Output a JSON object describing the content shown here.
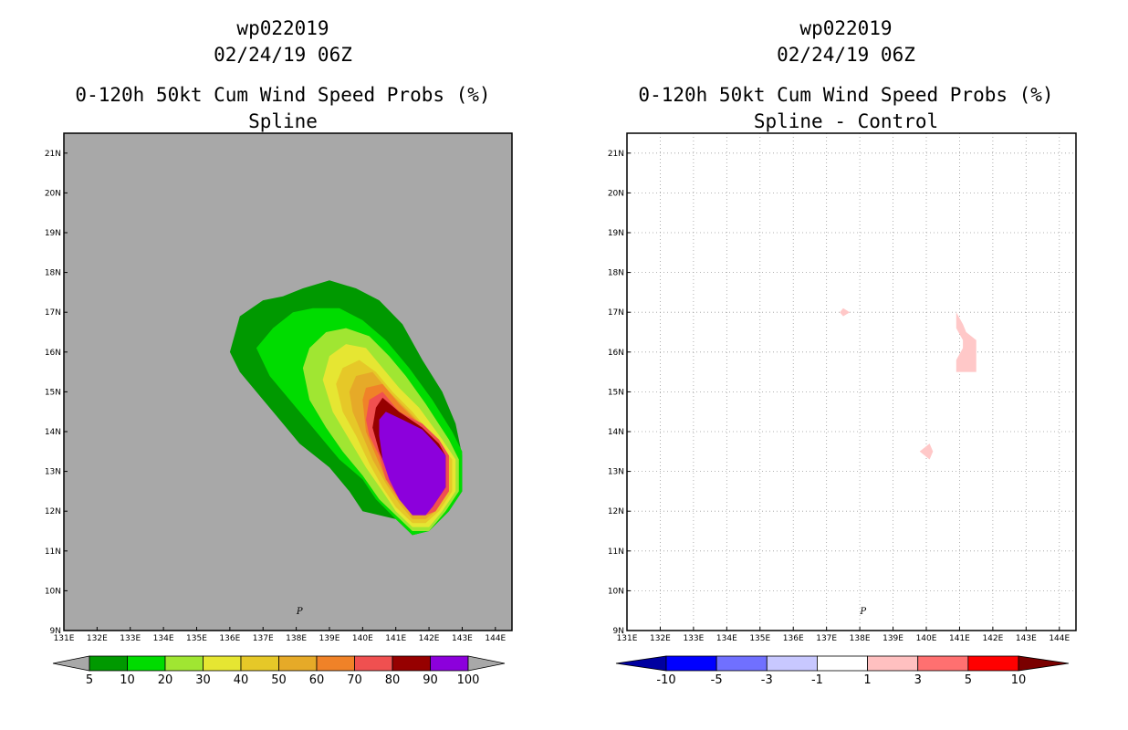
{
  "chart_data": [
    {
      "type": "heatmap",
      "storm_id": "wp022019",
      "datetime": "02/24/19 06Z",
      "title": "0-120h 50kt Cum Wind Speed Probs (%)",
      "subtitle": "Spline",
      "lon_ticks": [
        "131E",
        "132E",
        "133E",
        "134E",
        "135E",
        "136E",
        "137E",
        "138E",
        "139E",
        "140E",
        "141E",
        "142E",
        "143E",
        "144E"
      ],
      "lat_ticks": [
        "9N",
        "10N",
        "11N",
        "12N",
        "13N",
        "14N",
        "15N",
        "16N",
        "17N",
        "18N",
        "19N",
        "20N",
        "21N"
      ],
      "xlim": [
        131,
        144.5
      ],
      "ylim": [
        9,
        21.5
      ],
      "grid": false,
      "background_color": "#a8a8a8",
      "marker_label": "P",
      "marker_position": [
        138.1,
        9.5
      ],
      "colorbar": {
        "levels": [
          "5",
          "10",
          "20",
          "30",
          "40",
          "50",
          "60",
          "70",
          "80",
          "90",
          "100"
        ],
        "colors": [
          "#a8a8a8",
          "#009900",
          "#00dc00",
          "#a0e632",
          "#e6e632",
          "#e6c828",
          "#e6aa28",
          "#f08228",
          "#f05050",
          "#960000",
          "#8c00dc",
          "#a8a8a8"
        ]
      },
      "contours": [
        {
          "level": 5,
          "color": "#009900",
          "points": [
            [
              136,
              16
            ],
            [
              136.3,
              16.9
            ],
            [
              137,
              17.3
            ],
            [
              137.6,
              17.4
            ],
            [
              138.2,
              17.6
            ],
            [
              139,
              17.8
            ],
            [
              139.8,
              17.6
            ],
            [
              140.5,
              17.3
            ],
            [
              141.2,
              16.7
            ],
            [
              141.8,
              15.8
            ],
            [
              142.4,
              15
            ],
            [
              142.8,
              14.2
            ],
            [
              143,
              13.4
            ],
            [
              143,
              12.5
            ],
            [
              142.6,
              12
            ],
            [
              142,
              11.5
            ],
            [
              141.5,
              11.4
            ],
            [
              141,
              11.8
            ],
            [
              140,
              12
            ],
            [
              139.6,
              12.5
            ],
            [
              139,
              13.1
            ],
            [
              138.1,
              13.7
            ],
            [
              137.5,
              14.3
            ],
            [
              137,
              14.8
            ],
            [
              136.3,
              15.5
            ]
          ]
        },
        {
          "level": 10,
          "color": "#00dc00",
          "points": [
            [
              136.8,
              16.1
            ],
            [
              137.3,
              16.6
            ],
            [
              137.9,
              17
            ],
            [
              138.5,
              17.1
            ],
            [
              139.3,
              17.1
            ],
            [
              140,
              16.8
            ],
            [
              140.7,
              16.3
            ],
            [
              141.4,
              15.6
            ],
            [
              142.1,
              14.8
            ],
            [
              142.7,
              14
            ],
            [
              143,
              13.5
            ],
            [
              143,
              12.5
            ],
            [
              142.6,
              12
            ],
            [
              142,
              11.5
            ],
            [
              141.5,
              11.4
            ],
            [
              141,
              11.8
            ],
            [
              140.4,
              12.3
            ],
            [
              140,
              12.8
            ],
            [
              139.3,
              13.3
            ],
            [
              138.8,
              13.8
            ],
            [
              138.3,
              14.3
            ],
            [
              137.7,
              14.9
            ],
            [
              137.2,
              15.4
            ]
          ]
        },
        {
          "level": 20,
          "color": "#a0e632",
          "points": [
            [
              138.2,
              15.6
            ],
            [
              138.4,
              16.1
            ],
            [
              138.9,
              16.5
            ],
            [
              139.5,
              16.6
            ],
            [
              140.2,
              16.4
            ],
            [
              140.8,
              15.9
            ],
            [
              141.3,
              15.4
            ],
            [
              141.9,
              14.7
            ],
            [
              142.6,
              13.8
            ],
            [
              142.9,
              13.3
            ],
            [
              142.9,
              12.5
            ],
            [
              142.5,
              12
            ],
            [
              142,
              11.5
            ],
            [
              141.5,
              11.5
            ],
            [
              141,
              11.9
            ],
            [
              140.5,
              12.3
            ],
            [
              140,
              12.9
            ],
            [
              139.4,
              13.5
            ],
            [
              138.9,
              14.1
            ],
            [
              138.4,
              14.8
            ]
          ]
        },
        {
          "level": 30,
          "color": "#e6e632",
          "points": [
            [
              138.8,
              15.3
            ],
            [
              139,
              15.9
            ],
            [
              139.5,
              16.2
            ],
            [
              140.1,
              16.1
            ],
            [
              140.6,
              15.6
            ],
            [
              141.1,
              15.1
            ],
            [
              141.7,
              14.6
            ],
            [
              142.4,
              13.8
            ],
            [
              142.8,
              13.3
            ],
            [
              142.8,
              12.5
            ],
            [
              142.4,
              12
            ],
            [
              142,
              11.6
            ],
            [
              141.5,
              11.6
            ],
            [
              141,
              12
            ],
            [
              140.6,
              12.5
            ],
            [
              140.1,
              13.1
            ],
            [
              139.6,
              13.8
            ],
            [
              139.1,
              14.5
            ]
          ]
        },
        {
          "level": 40,
          "color": "#e6c828",
          "points": [
            [
              139.2,
              15.2
            ],
            [
              139.4,
              15.6
            ],
            [
              139.9,
              15.8
            ],
            [
              140.4,
              15.5
            ],
            [
              140.9,
              15
            ],
            [
              141.5,
              14.5
            ],
            [
              142.2,
              13.8
            ],
            [
              142.7,
              13.3
            ],
            [
              142.7,
              12.5
            ],
            [
              142.3,
              12
            ],
            [
              141.9,
              11.7
            ],
            [
              141.5,
              11.7
            ],
            [
              141,
              12.1
            ],
            [
              140.6,
              12.6
            ],
            [
              140.2,
              13.2
            ],
            [
              139.8,
              13.9
            ],
            [
              139.4,
              14.5
            ]
          ]
        },
        {
          "level": 50,
          "color": "#e6aa28",
          "points": [
            [
              139.6,
              15
            ],
            [
              139.8,
              15.4
            ],
            [
              140.3,
              15.5
            ],
            [
              140.8,
              15
            ],
            [
              141.4,
              14.5
            ],
            [
              142.1,
              13.9
            ],
            [
              142.6,
              13.4
            ],
            [
              142.6,
              12.5
            ],
            [
              142.2,
              12
            ],
            [
              141.9,
              11.8
            ],
            [
              141.5,
              11.8
            ],
            [
              141.1,
              12.2
            ],
            [
              140.7,
              12.7
            ],
            [
              140.3,
              13.3
            ],
            [
              140,
              13.9
            ],
            [
              139.7,
              14.5
            ]
          ]
        },
        {
          "level": 60,
          "color": "#f08228",
          "points": [
            [
              140,
              14.8
            ],
            [
              140.1,
              15.1
            ],
            [
              140.6,
              15.2
            ],
            [
              141.1,
              14.7
            ],
            [
              141.7,
              14.2
            ],
            [
              142.3,
              13.8
            ],
            [
              142.6,
              13.4
            ],
            [
              142.6,
              12.5
            ],
            [
              142.2,
              12
            ],
            [
              141.9,
              11.9
            ],
            [
              141.5,
              11.9
            ],
            [
              141.1,
              12.3
            ],
            [
              140.7,
              12.8
            ],
            [
              140.4,
              13.4
            ],
            [
              140.1,
              14
            ]
          ]
        },
        {
          "level": 70,
          "color": "#f05050",
          "points": [
            [
              140.1,
              14.3
            ],
            [
              140.2,
              14.8
            ],
            [
              140.6,
              15
            ],
            [
              141.1,
              14.5
            ],
            [
              141.8,
              14.2
            ],
            [
              142.3,
              13.8
            ],
            [
              142.6,
              13.4
            ],
            [
              142.6,
              12.5
            ],
            [
              142.2,
              12
            ],
            [
              141.9,
              11.9
            ],
            [
              141.5,
              11.9
            ],
            [
              141.1,
              12.3
            ],
            [
              140.7,
              12.8
            ],
            [
              140.5,
              13.4
            ],
            [
              140.2,
              13.9
            ]
          ]
        },
        {
          "level": 80,
          "color": "#960000",
          "points": [
            [
              140.3,
              14.1
            ],
            [
              140.4,
              14.6
            ],
            [
              140.6,
              14.85
            ],
            [
              141.1,
              14.5
            ],
            [
              141.8,
              14.1
            ],
            [
              142.3,
              13.7
            ],
            [
              142.5,
              13.4
            ],
            [
              142.5,
              12.6
            ],
            [
              142.1,
              12.1
            ],
            [
              141.9,
              12
            ],
            [
              141.5,
              12
            ],
            [
              141.1,
              12.4
            ],
            [
              140.8,
              12.9
            ],
            [
              140.5,
              13.5
            ]
          ]
        },
        {
          "level": 90,
          "color": "#8c00dc",
          "points": [
            [
              140.5,
              13.9
            ],
            [
              140.5,
              14.3
            ],
            [
              140.7,
              14.5
            ],
            [
              141.2,
              14.3
            ],
            [
              141.8,
              14.05
            ],
            [
              142.2,
              13.7
            ],
            [
              142.5,
              13.4
            ],
            [
              142.5,
              12.6
            ],
            [
              142.1,
              12.1
            ],
            [
              141.9,
              11.9
            ],
            [
              141.5,
              11.9
            ],
            [
              141.1,
              12.3
            ],
            [
              140.8,
              12.8
            ],
            [
              140.6,
              13.3
            ]
          ]
        }
      ]
    },
    {
      "type": "heatmap",
      "storm_id": "wp022019",
      "datetime": "02/24/19 06Z",
      "title": "0-120h 50kt Cum Wind Speed Probs (%)",
      "subtitle": "Spline - Control",
      "lon_ticks": [
        "131E",
        "132E",
        "133E",
        "134E",
        "135E",
        "136E",
        "137E",
        "138E",
        "139E",
        "140E",
        "141E",
        "142E",
        "143E",
        "144E"
      ],
      "lat_ticks": [
        "9N",
        "10N",
        "11N",
        "12N",
        "13N",
        "14N",
        "15N",
        "16N",
        "17N",
        "18N",
        "19N",
        "20N",
        "21N"
      ],
      "xlim": [
        131,
        144.5
      ],
      "ylim": [
        9,
        21.5
      ],
      "grid": true,
      "background_color": "#ffffff",
      "marker_label": "P",
      "marker_position": [
        138.1,
        9.5
      ],
      "colorbar": {
        "levels": [
          "-10",
          "-5",
          "-3",
          "-1",
          "1",
          "3",
          "5",
          "10"
        ],
        "colors": [
          "#0000a0",
          "#0000ff",
          "#7070ff",
          "#c8c8ff",
          "#ffffff",
          "#ffc0c0",
          "#ff7070",
          "#ff0000",
          "#7a0000"
        ]
      },
      "contours": [
        {
          "level": 1,
          "color": "#ffc8c8",
          "points": [
            [
              140.9,
              17
            ],
            [
              141.1,
              16.7
            ],
            [
              141.2,
              16.5
            ],
            [
              141.5,
              16.3
            ],
            [
              141.5,
              15.5
            ],
            [
              141.2,
              15.5
            ],
            [
              140.9,
              15.5
            ],
            [
              140.9,
              15.8
            ],
            [
              141.1,
              16.1
            ],
            [
              141.1,
              16.3
            ],
            [
              140.9,
              16.6
            ]
          ]
        },
        {
          "level": 1,
          "color": "#ffc8c8",
          "points": [
            [
              139.8,
              13.5
            ],
            [
              140.1,
              13.7
            ],
            [
              140.2,
              13.5
            ],
            [
              140.1,
              13.3
            ]
          ]
        },
        {
          "level": 1,
          "color": "#ffc8c8",
          "points": [
            [
              137.4,
              17
            ],
            [
              137.5,
              17.1
            ],
            [
              137.7,
              17
            ],
            [
              137.5,
              16.9
            ]
          ]
        }
      ]
    }
  ]
}
